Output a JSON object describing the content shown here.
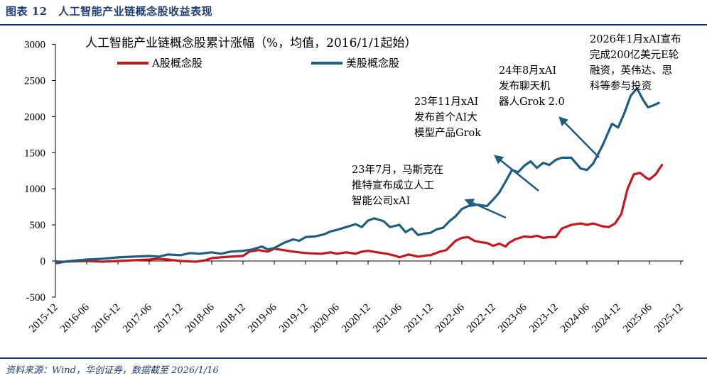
{
  "figure": {
    "title": "图表 12　人工智能产业链概念股收益表现",
    "source": "资料来源：Wind，华创证券，数据截至 2026/1/16"
  },
  "colors": {
    "a_share": "#c8161d",
    "us": "#1d5e82",
    "accent": "#1f3f73"
  },
  "chart_data": {
    "type": "line",
    "title": "人工智能产业链概念股累计涨幅（%，均值，2016/1/1起始）",
    "xlabel": "",
    "ylabel": "",
    "ylim": [
      -500,
      3000
    ],
    "yticks": [
      -500,
      0,
      500,
      1000,
      1500,
      2000,
      2500,
      3000
    ],
    "x_ticks": [
      "2015-12",
      "2016-06",
      "2016-12",
      "2017-06",
      "2017-12",
      "2018-06",
      "2018-12",
      "2019-06",
      "2019-12",
      "2020-06",
      "2020-12",
      "2021-06",
      "2021-12",
      "2022-06",
      "2022-12",
      "2023-06",
      "2023-12",
      "2024-06",
      "2024-12",
      "2025-06",
      "2025-12"
    ],
    "grid": false,
    "legend": "top-left",
    "series": [
      {
        "name": "A股概念股",
        "color": "#c8161d",
        "points": [
          [
            0,
            0
          ],
          [
            0.05,
            -30
          ],
          [
            0.3,
            -10
          ],
          [
            0.6,
            -5
          ],
          [
            1.0,
            0
          ],
          [
            1.5,
            -10
          ],
          [
            2.0,
            0
          ],
          [
            2.5,
            10
          ],
          [
            3.0,
            20
          ],
          [
            3.3,
            30
          ],
          [
            3.6,
            20
          ],
          [
            4.0,
            0
          ],
          [
            4.5,
            -10
          ],
          [
            4.8,
            10
          ],
          [
            5.0,
            40
          ],
          [
            5.3,
            50
          ],
          [
            5.6,
            60
          ],
          [
            6.0,
            70
          ],
          [
            6.2,
            130
          ],
          [
            6.5,
            150
          ],
          [
            6.8,
            130
          ],
          [
            7.0,
            170
          ],
          [
            7.3,
            150
          ],
          [
            7.6,
            130
          ],
          [
            8.0,
            110
          ],
          [
            8.5,
            100
          ],
          [
            8.8,
            120
          ],
          [
            9.0,
            100
          ],
          [
            9.3,
            120
          ],
          [
            9.6,
            100
          ],
          [
            9.8,
            130
          ],
          [
            10.0,
            140
          ],
          [
            10.3,
            120
          ],
          [
            10.6,
            100
          ],
          [
            10.9,
            70
          ],
          [
            11.0,
            50
          ],
          [
            11.3,
            90
          ],
          [
            11.6,
            60
          ],
          [
            11.9,
            80
          ],
          [
            12.0,
            80
          ],
          [
            12.3,
            130
          ],
          [
            12.5,
            150
          ],
          [
            12.8,
            280
          ],
          [
            13.0,
            320
          ],
          [
            13.2,
            330
          ],
          [
            13.4,
            280
          ],
          [
            13.6,
            260
          ],
          [
            13.8,
            250
          ],
          [
            14.0,
            210
          ],
          [
            14.2,
            240
          ],
          [
            14.4,
            200
          ],
          [
            14.5,
            250
          ],
          [
            14.7,
            300
          ],
          [
            15.0,
            340
          ],
          [
            15.2,
            330
          ],
          [
            15.4,
            350
          ],
          [
            15.6,
            320
          ],
          [
            15.8,
            330
          ],
          [
            16.0,
            330
          ],
          [
            16.2,
            450
          ],
          [
            16.5,
            500
          ],
          [
            16.8,
            520
          ],
          [
            17.0,
            500
          ],
          [
            17.2,
            520
          ],
          [
            17.5,
            480
          ],
          [
            17.7,
            470
          ],
          [
            17.9,
            520
          ],
          [
            18.1,
            650
          ],
          [
            18.3,
            1000
          ],
          [
            18.5,
            1200
          ],
          [
            18.7,
            1220
          ],
          [
            18.9,
            1150
          ],
          [
            19.0,
            1130
          ],
          [
            19.2,
            1200
          ],
          [
            19.4,
            1330
          ]
        ]
      },
      {
        "name": "美股概念股",
        "color": "#1d5e82",
        "points": [
          [
            0,
            0
          ],
          [
            0.1,
            -20
          ],
          [
            0.3,
            -10
          ],
          [
            0.6,
            5
          ],
          [
            1.0,
            20
          ],
          [
            1.5,
            30
          ],
          [
            2.0,
            50
          ],
          [
            2.5,
            60
          ],
          [
            3.0,
            70
          ],
          [
            3.3,
            60
          ],
          [
            3.6,
            90
          ],
          [
            4.0,
            80
          ],
          [
            4.3,
            110
          ],
          [
            4.6,
            100
          ],
          [
            5.0,
            120
          ],
          [
            5.3,
            100
          ],
          [
            5.6,
            130
          ],
          [
            6.0,
            140
          ],
          [
            6.3,
            160
          ],
          [
            6.6,
            200
          ],
          [
            6.8,
            160
          ],
          [
            7.0,
            180
          ],
          [
            7.3,
            250
          ],
          [
            7.6,
            300
          ],
          [
            7.8,
            280
          ],
          [
            8.0,
            330
          ],
          [
            8.3,
            340
          ],
          [
            8.6,
            370
          ],
          [
            8.8,
            410
          ],
          [
            9.0,
            430
          ],
          [
            9.3,
            470
          ],
          [
            9.6,
            510
          ],
          [
            9.8,
            470
          ],
          [
            10.0,
            560
          ],
          [
            10.2,
            590
          ],
          [
            10.5,
            550
          ],
          [
            10.7,
            470
          ],
          [
            11.0,
            500
          ],
          [
            11.2,
            400
          ],
          [
            11.4,
            450
          ],
          [
            11.6,
            360
          ],
          [
            11.8,
            380
          ],
          [
            12.0,
            390
          ],
          [
            12.2,
            440
          ],
          [
            12.4,
            460
          ],
          [
            12.6,
            550
          ],
          [
            12.8,
            620
          ],
          [
            13.0,
            720
          ],
          [
            13.2,
            760
          ],
          [
            13.5,
            780
          ],
          [
            13.8,
            760
          ],
          [
            14.0,
            850
          ],
          [
            14.2,
            950
          ],
          [
            14.4,
            1100
          ],
          [
            14.6,
            1260
          ],
          [
            14.8,
            1230
          ],
          [
            15.0,
            1320
          ],
          [
            15.2,
            1380
          ],
          [
            15.4,
            1290
          ],
          [
            15.6,
            1360
          ],
          [
            15.8,
            1330
          ],
          [
            16.0,
            1400
          ],
          [
            16.2,
            1430
          ],
          [
            16.5,
            1430
          ],
          [
            16.8,
            1280
          ],
          [
            17.0,
            1260
          ],
          [
            17.2,
            1350
          ],
          [
            17.5,
            1600
          ],
          [
            17.8,
            1900
          ],
          [
            18.0,
            1850
          ],
          [
            18.2,
            2050
          ],
          [
            18.4,
            2290
          ],
          [
            18.6,
            2390
          ],
          [
            18.8,
            2230
          ],
          [
            18.95,
            2130
          ],
          [
            19.1,
            2150
          ],
          [
            19.3,
            2190
          ]
        ]
      }
    ],
    "annotations": [
      {
        "lines": [
          "23年7月，马斯克在",
          "推特宣布成立人工",
          "智能公司xAI"
        ]
      },
      {
        "lines": [
          "23年11月xAI",
          "发布首个AI大",
          "模型产品Grok"
        ]
      },
      {
        "lines": [
          "24年8月xAI",
          "发布聊天机",
          "器人Grok 2.0"
        ]
      },
      {
        "lines": [
          "2026年1月xAI宣布",
          "完成200亿美元E轮",
          "融资，英伟达、思",
          "科等参与投资"
        ]
      }
    ]
  }
}
